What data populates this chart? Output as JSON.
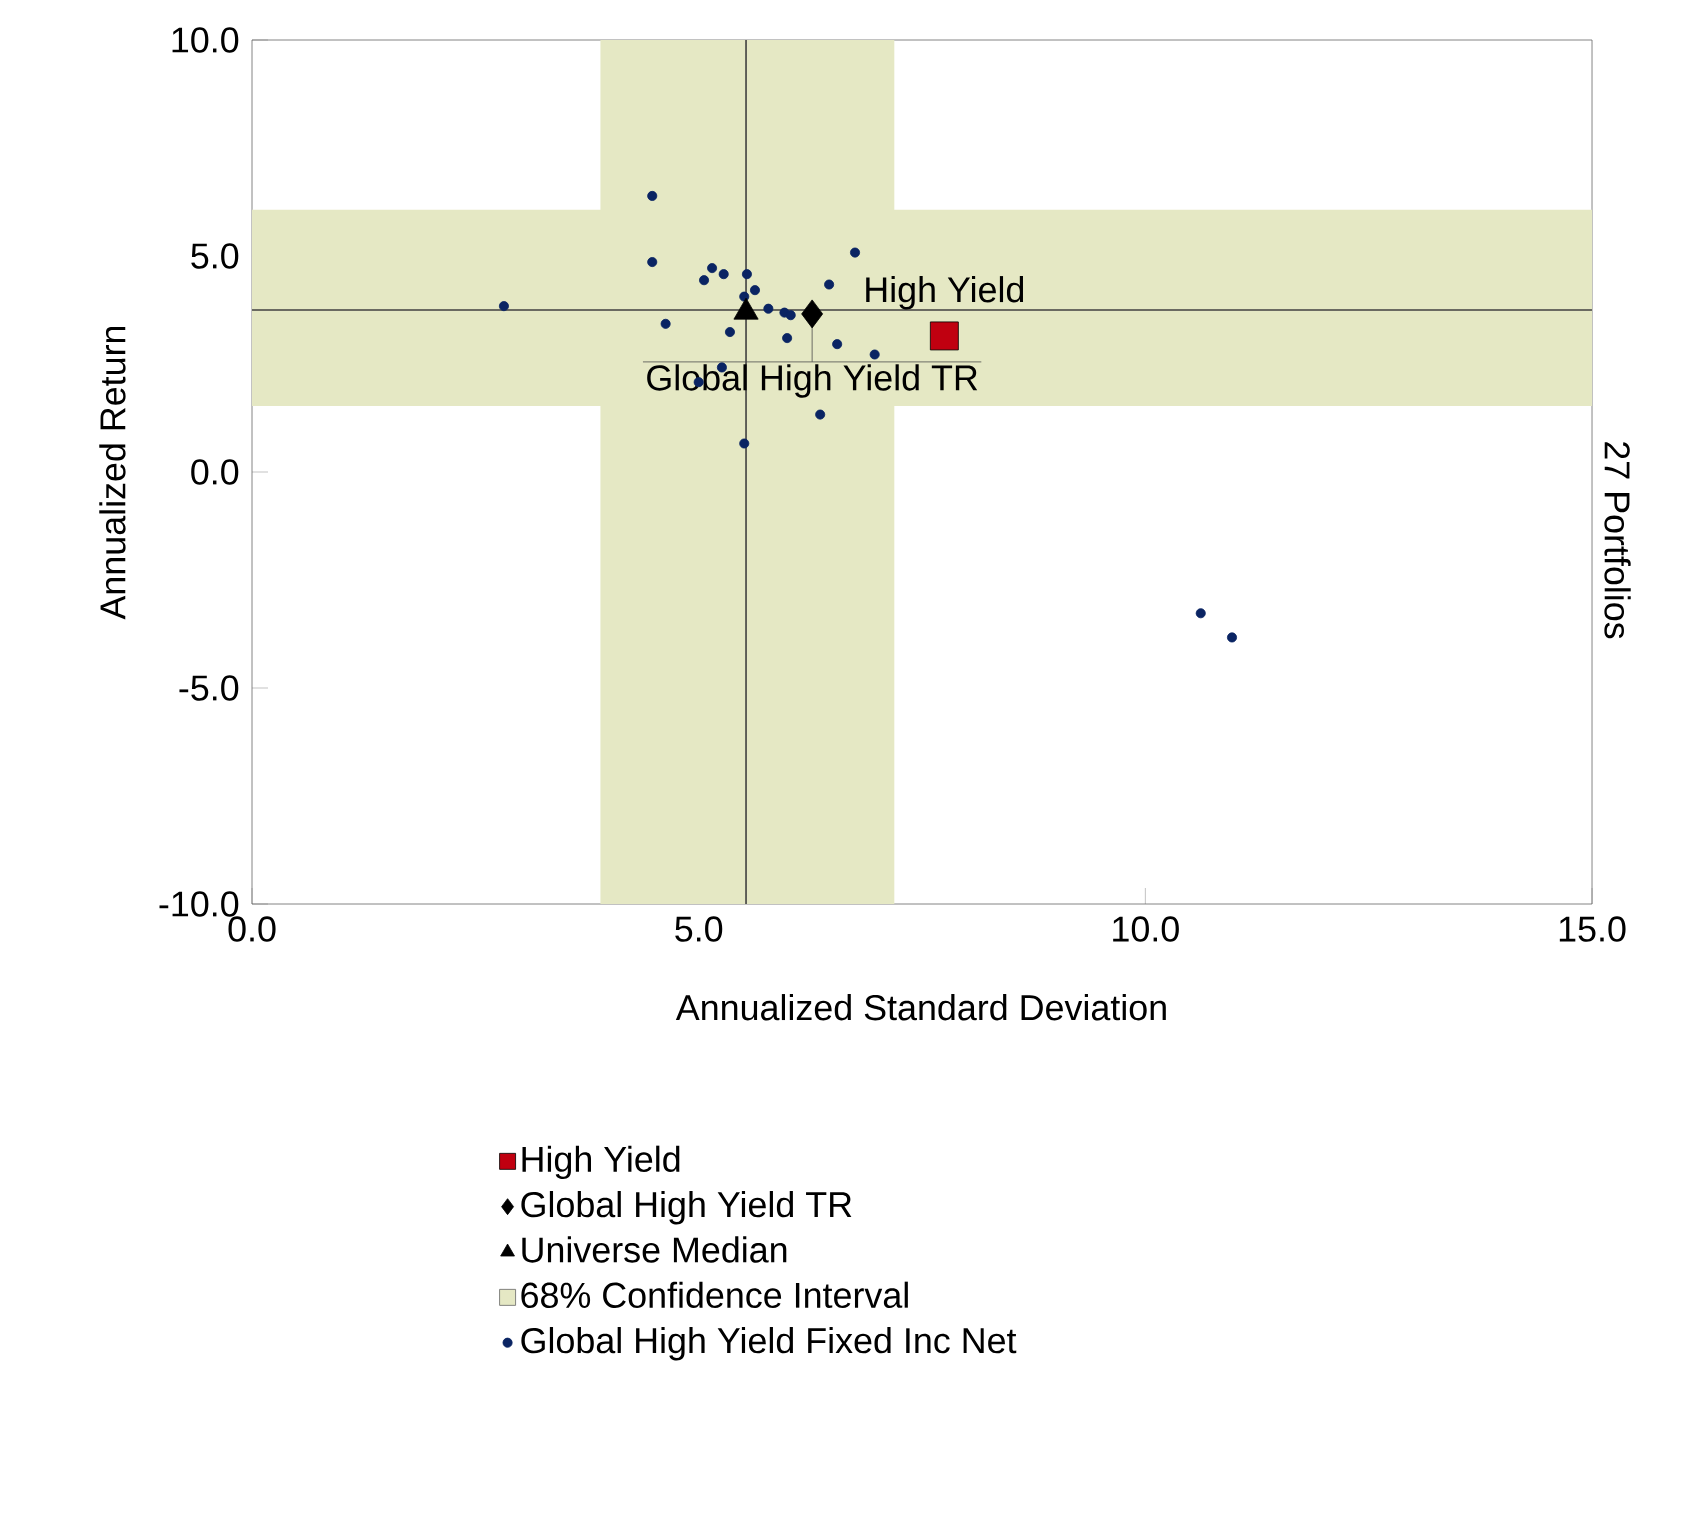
{
  "chart_data": {
    "type": "scatter",
    "xlabel": "Annualized Standard Deviation",
    "ylabel": "Annualized Return",
    "y2label": "27 Portfolios",
    "xlim": [
      0,
      15
    ],
    "ylim": [
      -10,
      10
    ],
    "xticks": [
      {
        "value": 0,
        "label": "0.0"
      },
      {
        "value": 5,
        "label": "5.0"
      },
      {
        "value": 10,
        "label": "10.0"
      },
      {
        "value": 15,
        "label": "15.0"
      }
    ],
    "yticks": [
      {
        "value": -10,
        "label": "-10.0"
      },
      {
        "value": -5,
        "label": "-5.0"
      },
      {
        "value": 0,
        "label": "0.0"
      },
      {
        "value": 5,
        "label": "5.0"
      },
      {
        "value": 10,
        "label": "10.0"
      }
    ],
    "grid": false,
    "legend": "bottom",
    "bands": [
      {
        "axis": "x",
        "from": 3.9,
        "to": 7.19,
        "label": "68% Confidence Interval",
        "color": "#e5e8c4"
      },
      {
        "axis": "y",
        "from": 1.53,
        "to": 6.07,
        "color": "#e5e8c4"
      }
    ],
    "ref_lines": [
      {
        "axis": "x",
        "value": 5.53,
        "color": "#404040"
      },
      {
        "axis": "y",
        "value": 3.75,
        "color": "#404040"
      }
    ],
    "series": [
      {
        "name": "High Yield",
        "color": "#c00010",
        "marker": "square",
        "x": [
          7.75
        ],
        "values": [
          3.15
        ]
      },
      {
        "name": "Global High Yield TR",
        "color": "#000000",
        "marker": "diamond",
        "x": [
          6.27
        ],
        "values": [
          3.66
        ]
      },
      {
        "name": "Universe Median",
        "color": "#000000",
        "marker": "triangle",
        "x": [
          5.53
        ],
        "values": [
          3.7
        ]
      },
      {
        "name": "Global High Yield Fixed Inc Net",
        "color": "#0a2463",
        "marker": "circle",
        "x": [
          2.82,
          4.48,
          4.48,
          4.63,
          5.06,
          5.15,
          5.28,
          5.54,
          5.63,
          5.51,
          5.78,
          5.96,
          6.03,
          5.99,
          6.46,
          6.75,
          6.55,
          6.97,
          5.26,
          5.0,
          5.35,
          6.36,
          5.51,
          10.62,
          10.97
        ],
        "values": [
          3.84,
          6.39,
          4.86,
          3.43,
          4.44,
          4.72,
          4.58,
          4.58,
          4.21,
          4.06,
          3.78,
          3.69,
          3.63,
          3.1,
          4.34,
          5.08,
          2.96,
          2.72,
          2.42,
          2.08,
          3.24,
          1.33,
          0.66,
          -3.27,
          -3.83
        ]
      }
    ],
    "annotations": [
      {
        "text": "High Yield",
        "x": 7.75,
        "y": 3.15
      },
      {
        "text": "Global High Yield TR",
        "x": 6.27,
        "y": 3.66
      }
    ]
  }
}
